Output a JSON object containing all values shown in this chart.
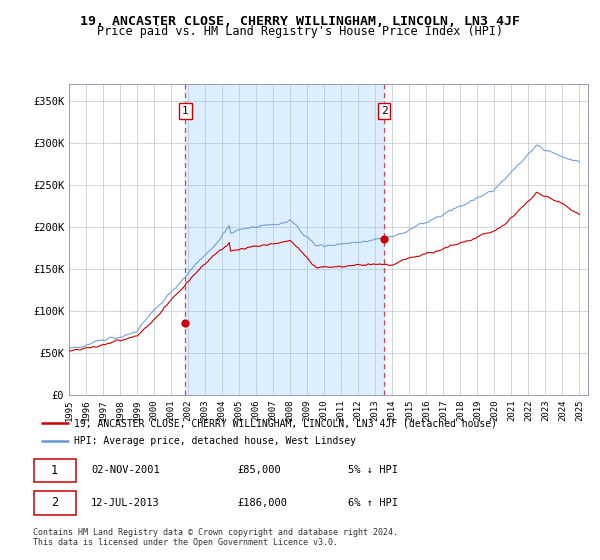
{
  "title": "19, ANCASTER CLOSE, CHERRY WILLINGHAM, LINCOLN, LN3 4JF",
  "subtitle": "Price paid vs. HM Land Registry's House Price Index (HPI)",
  "title_fontsize": 9.5,
  "subtitle_fontsize": 8.5,
  "xlim_start": 1995.0,
  "xlim_end": 2025.5,
  "ylim": [
    0,
    370000
  ],
  "yticks": [
    0,
    50000,
    100000,
    150000,
    200000,
    250000,
    300000,
    350000
  ],
  "ytick_labels": [
    "£0",
    "£50K",
    "£100K",
    "£150K",
    "£200K",
    "£250K",
    "£300K",
    "£350K"
  ],
  "hpi_color": "#6699cc",
  "price_color": "#cc0000",
  "bg_color": "#ddeeff",
  "sale1_x": 2001.84,
  "sale1_y": 85000,
  "sale1_label": "1",
  "sale2_x": 2013.53,
  "sale2_y": 186000,
  "sale2_label": "2",
  "legend_line1": "19, ANCASTER CLOSE, CHERRY WILLINGHAM, LINCOLN, LN3 4JF (detached house)",
  "legend_line2": "HPI: Average price, detached house, West Lindsey",
  "table_row1_num": "1",
  "table_row1_date": "02-NOV-2001",
  "table_row1_price": "£85,000",
  "table_row1_hpi": "5% ↓ HPI",
  "table_row2_num": "2",
  "table_row2_date": "12-JUL-2013",
  "table_row2_price": "£186,000",
  "table_row2_hpi": "6% ↑ HPI",
  "footnote1": "Contains HM Land Registry data © Crown copyright and database right 2024.",
  "footnote2": "This data is licensed under the Open Government Licence v3.0."
}
